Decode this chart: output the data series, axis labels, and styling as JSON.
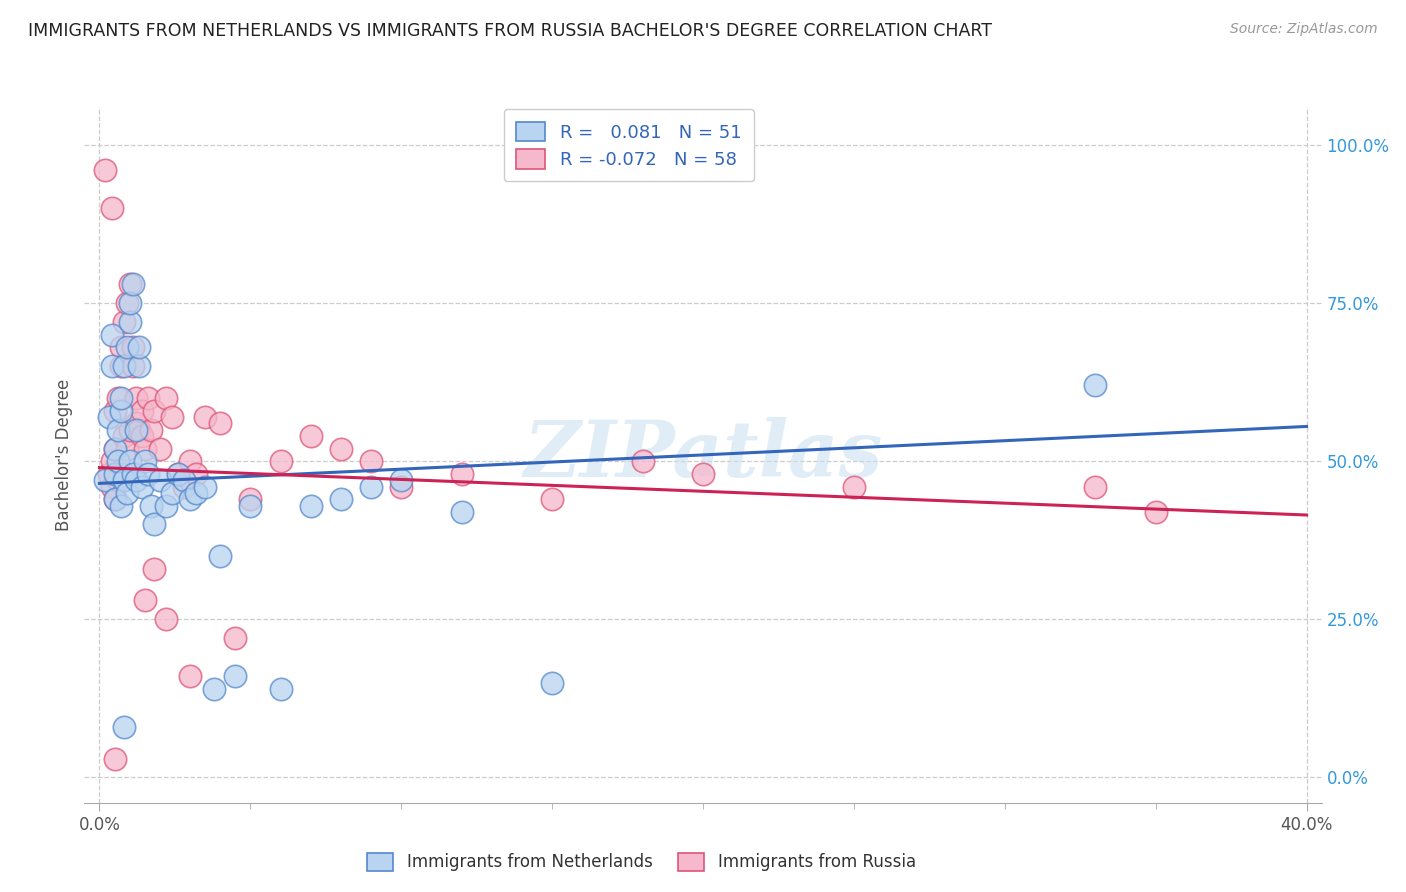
{
  "title": "IMMIGRANTS FROM NETHERLANDS VS IMMIGRANTS FROM RUSSIA BACHELOR'S DEGREE CORRELATION CHART",
  "source": "Source: ZipAtlas.com",
  "ylabel": "Bachelor's Degree",
  "ytick_vals": [
    0.0,
    0.25,
    0.5,
    0.75,
    1.0
  ],
  "ytick_labels": [
    "0.0%",
    "25.0%",
    "50.0%",
    "75.0%",
    "100.0%"
  ],
  "xtick_vals": [
    0.0,
    0.4
  ],
  "xtick_labels": [
    "0.0%",
    "40.0%"
  ],
  "xlim": [
    -0.005,
    0.405
  ],
  "ylim": [
    -0.04,
    1.06
  ],
  "watermark": "ZIPatlas",
  "netherlands_color": "#b8d4f0",
  "russia_color": "#f5b8cc",
  "netherlands_edge": "#5588cc",
  "russia_edge": "#dd5577",
  "trend_netherlands": "#3366bb",
  "trend_russia": "#cc2255",
  "R_netherlands": 0.081,
  "N_netherlands": 51,
  "R_russia": -0.072,
  "N_russia": 58,
  "nl_trend_y0": 0.465,
  "nl_trend_y1": 0.555,
  "ru_trend_y0": 0.49,
  "ru_trend_y1": 0.415,
  "netherlands_x": [
    0.002,
    0.003,
    0.004,
    0.004,
    0.005,
    0.005,
    0.005,
    0.006,
    0.006,
    0.007,
    0.007,
    0.007,
    0.008,
    0.008,
    0.009,
    0.009,
    0.01,
    0.01,
    0.01,
    0.011,
    0.011,
    0.012,
    0.012,
    0.013,
    0.013,
    0.014,
    0.015,
    0.016,
    0.017,
    0.018,
    0.02,
    0.022,
    0.024,
    0.026,
    0.028,
    0.03,
    0.032,
    0.035,
    0.038,
    0.04,
    0.045,
    0.05,
    0.06,
    0.07,
    0.08,
    0.09,
    0.1,
    0.12,
    0.15,
    0.008,
    0.33
  ],
  "netherlands_y": [
    0.47,
    0.57,
    0.65,
    0.7,
    0.44,
    0.48,
    0.52,
    0.5,
    0.55,
    0.43,
    0.58,
    0.6,
    0.47,
    0.65,
    0.68,
    0.45,
    0.72,
    0.75,
    0.5,
    0.78,
    0.48,
    0.55,
    0.47,
    0.65,
    0.68,
    0.46,
    0.5,
    0.48,
    0.43,
    0.4,
    0.47,
    0.43,
    0.45,
    0.48,
    0.47,
    0.44,
    0.45,
    0.46,
    0.14,
    0.35,
    0.16,
    0.43,
    0.14,
    0.43,
    0.44,
    0.46,
    0.47,
    0.42,
    0.15,
    0.08,
    0.62
  ],
  "russia_x": [
    0.002,
    0.003,
    0.004,
    0.004,
    0.005,
    0.005,
    0.005,
    0.006,
    0.006,
    0.007,
    0.007,
    0.008,
    0.008,
    0.008,
    0.009,
    0.009,
    0.01,
    0.01,
    0.011,
    0.011,
    0.012,
    0.012,
    0.013,
    0.014,
    0.014,
    0.015,
    0.016,
    0.017,
    0.018,
    0.02,
    0.022,
    0.024,
    0.026,
    0.028,
    0.03,
    0.032,
    0.035,
    0.04,
    0.045,
    0.05,
    0.06,
    0.07,
    0.08,
    0.09,
    0.1,
    0.12,
    0.15,
    0.18,
    0.2,
    0.25,
    0.33,
    0.35,
    0.015,
    0.018,
    0.022,
    0.005,
    0.03,
    0.004
  ],
  "russia_y": [
    0.96,
    0.48,
    0.5,
    0.46,
    0.52,
    0.44,
    0.58,
    0.6,
    0.47,
    0.65,
    0.68,
    0.48,
    0.72,
    0.54,
    0.75,
    0.52,
    0.78,
    0.55,
    0.65,
    0.68,
    0.6,
    0.56,
    0.55,
    0.54,
    0.58,
    0.52,
    0.6,
    0.55,
    0.58,
    0.52,
    0.6,
    0.57,
    0.48,
    0.46,
    0.5,
    0.48,
    0.57,
    0.56,
    0.22,
    0.44,
    0.5,
    0.54,
    0.52,
    0.5,
    0.46,
    0.48,
    0.44,
    0.5,
    0.48,
    0.46,
    0.46,
    0.42,
    0.28,
    0.33,
    0.25,
    0.03,
    0.16,
    0.9
  ]
}
